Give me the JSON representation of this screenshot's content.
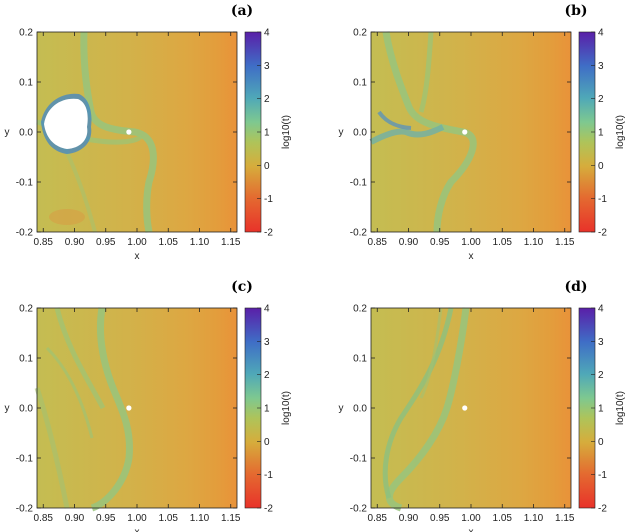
{
  "chart_data": [
    {
      "type": "heatmap",
      "panel": "(a)",
      "xlabel": "x",
      "ylabel": "y",
      "colorbar_label": "log10(t)",
      "xlim": [
        0.84,
        1.16
      ],
      "ylim": [
        -0.2,
        0.2
      ],
      "xticks": [
        "0.85",
        "0.90",
        "0.95",
        "1.00",
        "1.05",
        "1.10",
        "1.15"
      ],
      "yticks": [
        "-0.2",
        "-0.1",
        "0.0",
        "0.1",
        "0.2"
      ],
      "cbar_range": [
        -2,
        4
      ],
      "cbar_ticks": [
        "-2",
        "-1",
        "0",
        "1",
        "2",
        "3",
        "4"
      ],
      "point": {
        "x": 0.987,
        "y": 0.0
      },
      "bounded_region": true
    },
    {
      "type": "heatmap",
      "panel": "(b)",
      "xlabel": "x",
      "ylabel": "y",
      "colorbar_label": "log10(t)",
      "xlim": [
        0.84,
        1.16
      ],
      "ylim": [
        -0.2,
        0.2
      ],
      "xticks": [
        "0.85",
        "0.90",
        "0.95",
        "1.00",
        "1.05",
        "1.10",
        "1.15"
      ],
      "yticks": [
        "-0.2",
        "-0.1",
        "0.0",
        "0.1",
        "0.2"
      ],
      "cbar_range": [
        -2,
        4
      ],
      "cbar_ticks": [
        "-2",
        "-1",
        "0",
        "1",
        "2",
        "3",
        "4"
      ],
      "point": {
        "x": 0.99,
        "y": 0.0
      },
      "bounded_region": false
    },
    {
      "type": "heatmap",
      "panel": "(c)",
      "xlabel": "x",
      "ylabel": "y",
      "colorbar_label": "log10(t)",
      "xlim": [
        0.84,
        1.16
      ],
      "ylim": [
        -0.2,
        0.2
      ],
      "xticks": [
        "0.85",
        "0.90",
        "0.95",
        "1.00",
        "1.05",
        "1.10",
        "1.15"
      ],
      "yticks": [
        "-0.2",
        "-0.1",
        "0.0",
        "0.1",
        "0.2"
      ],
      "cbar_range": [
        -2,
        4
      ],
      "cbar_ticks": [
        "-2",
        "-1",
        "0",
        "1",
        "2",
        "3",
        "4"
      ],
      "point": {
        "x": 0.987,
        "y": 0.0
      },
      "bounded_region": false
    },
    {
      "type": "heatmap",
      "panel": "(d)",
      "xlabel": "x",
      "ylabel": "y",
      "colorbar_label": "log10(t)",
      "xlim": [
        0.84,
        1.16
      ],
      "ylim": [
        -0.2,
        0.2
      ],
      "xticks": [
        "0.85",
        "0.90",
        "0.95",
        "1.00",
        "1.05",
        "1.10",
        "1.15"
      ],
      "yticks": [
        "-0.2",
        "-0.1",
        "0.0",
        "0.1",
        "0.2"
      ],
      "cbar_range": [
        -2,
        4
      ],
      "cbar_ticks": [
        "-2",
        "-1",
        "0",
        "1",
        "2",
        "3",
        "4"
      ],
      "point": {
        "x": 0.99,
        "y": 0.0
      },
      "bounded_region": false
    }
  ],
  "colors": {
    "low": "#e8322a",
    "mid_low": "#e0a838",
    "mid": "#c0c450",
    "mid_high": "#7ec890",
    "high": "#3f86c8",
    "top": "#5a1fa8",
    "field": "#cdb54a",
    "field_right": "#e6a43e",
    "tendril": "#9ac478",
    "bounded": "#ffffff",
    "point": "#ffffff"
  }
}
